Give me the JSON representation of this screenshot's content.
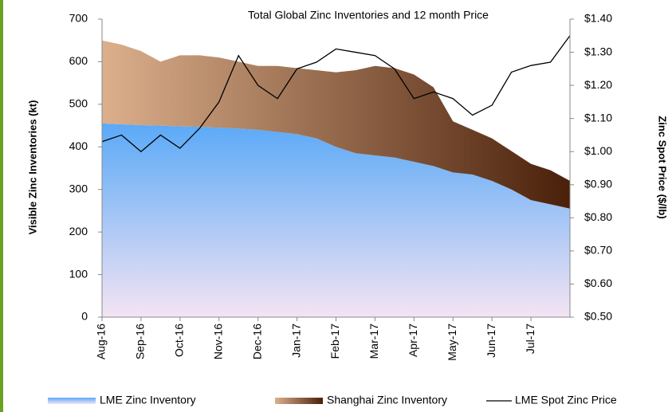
{
  "chart_data": {
    "type": "stacked-area-line",
    "title": "Total Global Zinc Inventories and 12 month Price",
    "y_label": "Visible Zinc Inventories (kt)",
    "y2_label": "Zinc Spot Price ($/lb)",
    "x": [
      0,
      0.5,
      1,
      1.5,
      2,
      2.5,
      3,
      3.5,
      4,
      4.5,
      5,
      5.5,
      6,
      6.5,
      7,
      7.5,
      8,
      8.5,
      9,
      9.5,
      10,
      10.5,
      11,
      11.5,
      12
    ],
    "xlim": [
      0,
      12
    ],
    "xticks": [
      {
        "value": 0,
        "label": "Aug-16"
      },
      {
        "value": 1,
        "label": "Sep-16"
      },
      {
        "value": 2,
        "label": "Oct-16"
      },
      {
        "value": 3,
        "label": "Nov-16"
      },
      {
        "value": 4,
        "label": "Dec-16"
      },
      {
        "value": 5,
        "label": "Jan-17"
      },
      {
        "value": 6,
        "label": "Feb-17"
      },
      {
        "value": 7,
        "label": "Mar-17"
      },
      {
        "value": 8,
        "label": "Apr-17"
      },
      {
        "value": 9,
        "label": "May-17"
      },
      {
        "value": 10,
        "label": "Jun-17"
      },
      {
        "value": 11,
        "label": "Jul-17"
      }
    ],
    "ylim": [
      0,
      700
    ],
    "yticks": [
      0,
      100,
      200,
      300,
      400,
      500,
      600,
      700
    ],
    "y2lim": [
      0.5,
      1.4
    ],
    "y2ticks": [
      {
        "value": 0.5,
        "label": "$0.50"
      },
      {
        "value": 0.6,
        "label": "$0.60"
      },
      {
        "value": 0.7,
        "label": "$0.70"
      },
      {
        "value": 0.8,
        "label": "$0.80"
      },
      {
        "value": 0.9,
        "label": "$0.90"
      },
      {
        "value": 1.0,
        "label": "$1.00"
      },
      {
        "value": 1.1,
        "label": "$1.10"
      },
      {
        "value": 1.2,
        "label": "$1.20"
      },
      {
        "value": 1.3,
        "label": "$1.30"
      },
      {
        "value": 1.4,
        "label": "$1.40"
      }
    ],
    "series": [
      {
        "name": "LME Zinc Inventory",
        "color": "#5aa9f7",
        "kind": "area",
        "values": [
          455,
          453,
          451,
          450,
          448,
          447,
          445,
          443,
          440,
          435,
          430,
          420,
          400,
          385,
          380,
          375,
          365,
          355,
          340,
          335,
          320,
          300,
          275,
          265,
          255
        ]
      },
      {
        "name": "Shanghai Zinc Inventory",
        "color": "#8a4a20",
        "kind": "area",
        "values": [
          195,
          187,
          174,
          150,
          167,
          168,
          165,
          157,
          150,
          155,
          155,
          160,
          175,
          195,
          210,
          210,
          205,
          185,
          120,
          105,
          100,
          90,
          85,
          80,
          65
        ]
      },
      {
        "name": "LME Spot Zinc Price",
        "color": "#000000",
        "kind": "line",
        "axis": "y2",
        "values": [
          1.03,
          1.05,
          1.0,
          1.05,
          1.01,
          1.07,
          1.15,
          1.29,
          1.2,
          1.16,
          1.25,
          1.27,
          1.31,
          1.3,
          1.29,
          1.25,
          1.16,
          1.18,
          1.16,
          1.11,
          1.14,
          1.24,
          1.26,
          1.27,
          1.35
        ]
      }
    ]
  }
}
